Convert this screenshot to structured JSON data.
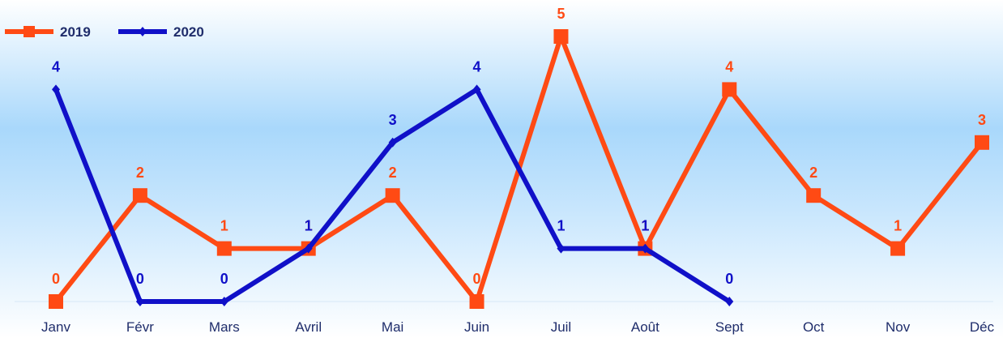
{
  "chart_data": {
    "type": "line",
    "categories": [
      "Janv",
      "Févr",
      "Mars",
      "Avril",
      "Mai",
      "Juin",
      "Juil",
      "Août",
      "Sept",
      "Oct",
      "Nov",
      "Déc"
    ],
    "series": [
      {
        "name": "2019",
        "values": [
          0,
          2,
          1,
          1,
          2,
          0,
          5,
          1,
          4,
          2,
          1,
          3
        ],
        "color": "#ff4a14",
        "marker": "square"
      },
      {
        "name": "2020",
        "values": [
          4,
          0,
          0,
          1,
          3,
          4,
          1,
          1,
          0,
          null,
          null,
          null
        ],
        "color": "#1010c8",
        "marker": "diamond"
      }
    ],
    "ylim": [
      0,
      5.5
    ],
    "grid": false,
    "legend": "top-left",
    "data_labels": true,
    "background": "gradient light-blue"
  }
}
